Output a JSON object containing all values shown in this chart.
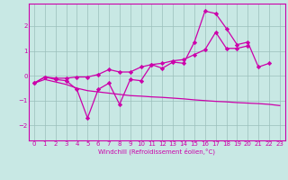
{
  "x": [
    0,
    1,
    2,
    3,
    4,
    5,
    6,
    7,
    8,
    9,
    10,
    11,
    12,
    13,
    14,
    15,
    16,
    17,
    18,
    19,
    20,
    21,
    22,
    23
  ],
  "y_zigzag": [
    -0.3,
    -0.05,
    -0.15,
    -0.2,
    -0.55,
    -1.7,
    -0.55,
    -0.3,
    -1.15,
    -0.15,
    -0.2,
    0.45,
    0.3,
    0.55,
    0.5,
    1.35,
    2.6,
    2.5,
    1.9,
    1.25,
    1.35,
    0.35,
    0.5,
    null
  ],
  "y_upper": [
    -0.3,
    -0.05,
    -0.1,
    -0.1,
    -0.05,
    -0.05,
    0.05,
    0.25,
    0.15,
    0.15,
    0.35,
    0.45,
    0.5,
    0.6,
    0.65,
    0.85,
    1.05,
    1.75,
    1.1,
    1.1,
    1.2,
    null,
    null,
    null
  ],
  "y_lower": [
    -0.3,
    -0.15,
    -0.25,
    -0.35,
    -0.5,
    -0.6,
    -0.65,
    -0.7,
    -0.75,
    -0.8,
    -0.82,
    -0.85,
    -0.87,
    -0.9,
    -0.93,
    -0.97,
    -1.0,
    -1.03,
    -1.05,
    -1.08,
    -1.1,
    -1.12,
    -1.15,
    -1.2
  ],
  "color": "#cc00aa",
  "bg_color": "#c8e8e4",
  "grid_color": "#9bbfbb",
  "xlabel": "Windchill (Refroidissement éolien,°C)",
  "xlim": [
    -0.5,
    23.5
  ],
  "ylim": [
    -2.6,
    2.9
  ],
  "yticks": [
    -2,
    -1,
    0,
    1,
    2
  ],
  "xticks": [
    0,
    1,
    2,
    3,
    4,
    5,
    6,
    7,
    8,
    9,
    10,
    11,
    12,
    13,
    14,
    15,
    16,
    17,
    18,
    19,
    20,
    21,
    22,
    23
  ]
}
